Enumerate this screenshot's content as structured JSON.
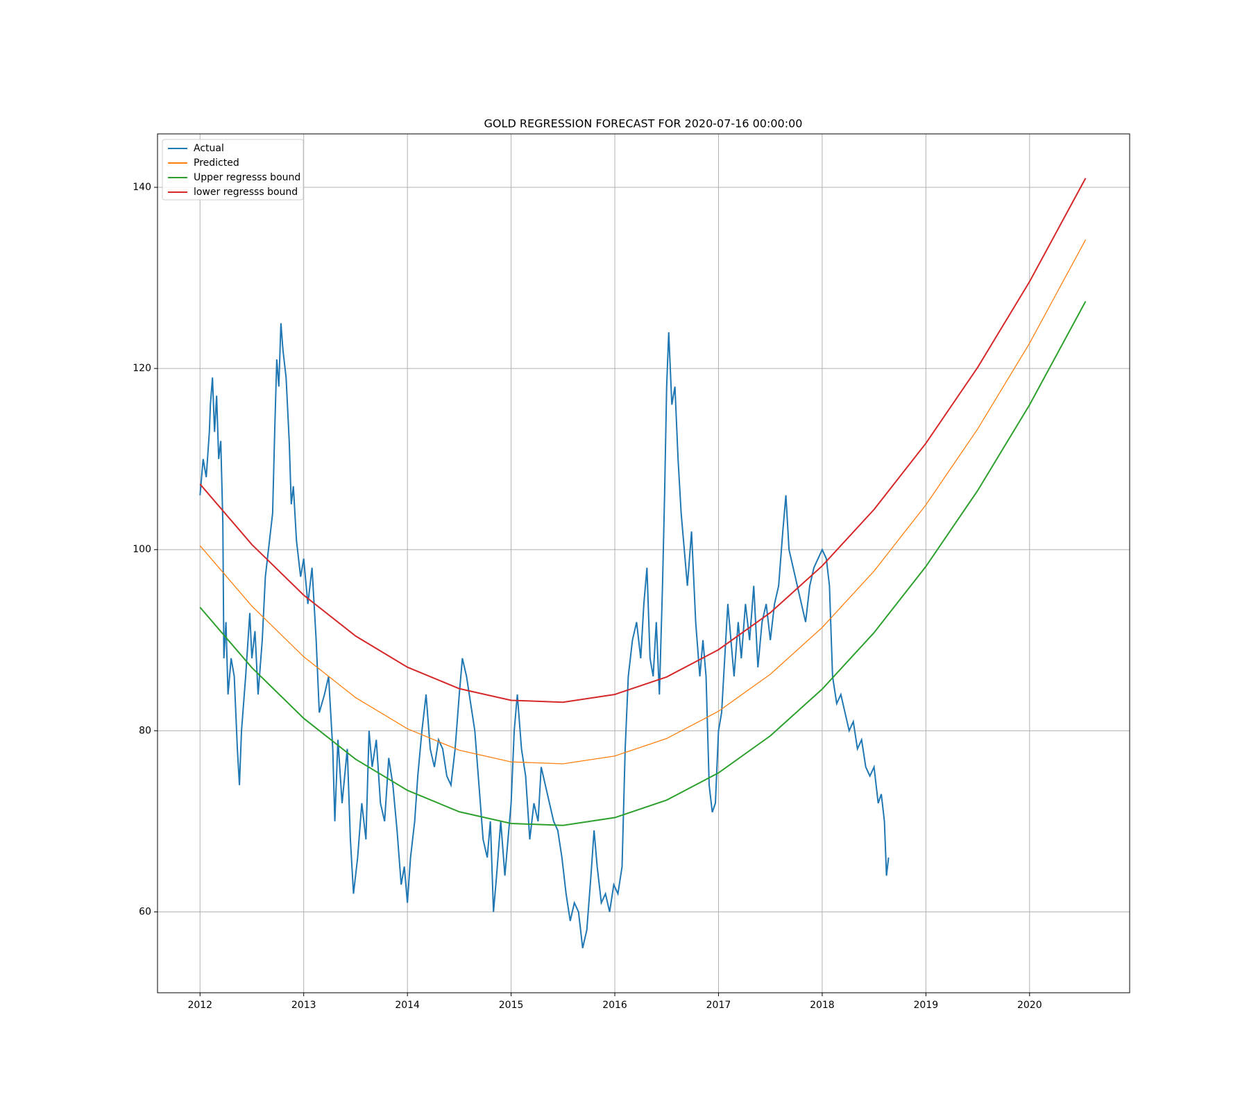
{
  "chart_data": {
    "type": "line",
    "title": "GOLD REGRESSION FORECAST FOR 2020-07-16 00:00:00",
    "xlim": [
      2011.59,
      2020.965
    ],
    "xticks": [
      2012,
      2013,
      2014,
      2015,
      2016,
      2017,
      2018,
      2019,
      2020
    ],
    "ylim": [
      51.07,
      145.9
    ],
    "yticks": [
      60,
      80,
      100,
      120,
      140
    ],
    "grid": true,
    "legend": "upper-left",
    "series": [
      {
        "name": "Actual",
        "color": "#1f77b4",
        "x": [
          2012.0,
          2012.03,
          2012.06,
          2012.09,
          2012.1,
          2012.12,
          2012.14,
          2012.16,
          2012.18,
          2012.2,
          2012.22,
          2012.23,
          2012.25,
          2012.27,
          2012.3,
          2012.33,
          2012.36,
          2012.38,
          2012.4,
          2012.44,
          2012.48,
          2012.5,
          2012.53,
          2012.56,
          2012.6,
          2012.63,
          2012.66,
          2012.7,
          2012.72,
          2012.74,
          2012.76,
          2012.78,
          2012.8,
          2012.83,
          2012.86,
          2012.88,
          2012.9,
          2012.93,
          2012.97,
          2013.0,
          2013.04,
          2013.08,
          2013.12,
          2013.15,
          2013.2,
          2013.24,
          2013.28,
          2013.3,
          2013.33,
          2013.37,
          2013.42,
          2013.45,
          2013.48,
          2013.52,
          2013.56,
          2013.6,
          2013.63,
          2013.66,
          2013.7,
          2013.74,
          2013.78,
          2013.82,
          2013.86,
          2013.9,
          2013.94,
          2013.97,
          2014.0,
          2014.03,
          2014.07,
          2014.1,
          2014.14,
          2014.18,
          2014.22,
          2014.26,
          2014.3,
          2014.34,
          2014.38,
          2014.42,
          2014.46,
          2014.5,
          2014.53,
          2014.57,
          2014.61,
          2014.65,
          2014.69,
          2014.73,
          2014.77,
          2014.8,
          2014.83,
          2014.86,
          2014.9,
          2014.94,
          2014.97,
          2015.0,
          2015.03,
          2015.06,
          2015.1,
          2015.14,
          2015.18,
          2015.22,
          2015.26,
          2015.29,
          2015.33,
          2015.37,
          2015.41,
          2015.45,
          2015.49,
          2015.53,
          2015.57,
          2015.61,
          2015.65,
          2015.69,
          2015.73,
          2015.77,
          2015.8,
          2015.83,
          2015.87,
          2015.91,
          2015.95,
          2015.99,
          2016.03,
          2016.07,
          2016.1,
          2016.13,
          2016.17,
          2016.21,
          2016.25,
          2016.28,
          2016.31,
          2016.34,
          2016.37,
          2016.4,
          2016.43,
          2016.46,
          2016.48,
          2016.5,
          2016.52,
          2016.55,
          2016.58,
          2016.61,
          2016.64,
          2016.67,
          2016.7,
          2016.74,
          2016.78,
          2016.82,
          2016.85,
          2016.88,
          2016.91,
          2016.94,
          2016.97,
          2017.0,
          2017.03,
          2017.06,
          2017.09,
          2017.12,
          2017.15,
          2017.19,
          2017.22,
          2017.26,
          2017.3,
          2017.34,
          2017.38,
          2017.42,
          2017.46,
          2017.5,
          2017.54,
          2017.58,
          2017.62,
          2017.65,
          2017.68,
          2017.72,
          2017.76,
          2017.8,
          2017.84,
          2017.88,
          2017.92,
          2017.96,
          2018.0,
          2018.04,
          2018.07,
          2018.1,
          2018.14,
          2018.18,
          2018.22,
          2018.26,
          2018.3,
          2018.34,
          2018.38,
          2018.42,
          2018.46,
          2018.5,
          2018.54,
          2018.57,
          2018.6,
          2018.62,
          2018.64
        ],
        "values": [
          106,
          110,
          108,
          113,
          116,
          119,
          113,
          117,
          110,
          112,
          103,
          88,
          92,
          84,
          88,
          86,
          78,
          74,
          80,
          86,
          93,
          88,
          91,
          84,
          90,
          97,
          100,
          104,
          113,
          121,
          118,
          125,
          122,
          119,
          112,
          105,
          107,
          101,
          97,
          99,
          94,
          98,
          90,
          82,
          84,
          86,
          78,
          70,
          79,
          72,
          78,
          68,
          62,
          66,
          72,
          68,
          80,
          76,
          79,
          72,
          70,
          77,
          74,
          69,
          63,
          65,
          61,
          66,
          70,
          75,
          80,
          84,
          78,
          76,
          79,
          78,
          75,
          74,
          78,
          84,
          88,
          86,
          83,
          80,
          74,
          68,
          66,
          70,
          60,
          64,
          70,
          64,
          68,
          72,
          80,
          84,
          78,
          75,
          68,
          72,
          70,
          76,
          74,
          72,
          70,
          69,
          66,
          62,
          59,
          61,
          60,
          56,
          58,
          64,
          69,
          65,
          61,
          62,
          60,
          63,
          62,
          65,
          78,
          86,
          90,
          92,
          88,
          94,
          98,
          88,
          86,
          92,
          84,
          96,
          106,
          118,
          124,
          116,
          118,
          110,
          104,
          100,
          96,
          102,
          92,
          86,
          90,
          86,
          74,
          71,
          72,
          80,
          82,
          88,
          94,
          90,
          86,
          92,
          88,
          94,
          90,
          96,
          87,
          92,
          94,
          90,
          94,
          96,
          102,
          106,
          100,
          98,
          96,
          94,
          92,
          96,
          98,
          99,
          100,
          99,
          96,
          86,
          83,
          84,
          82,
          80,
          81,
          78,
          79,
          76,
          75,
          76,
          72,
          73,
          70,
          64,
          66
        ]
      },
      {
        "name": "Predicted",
        "color": "#ff7f0e",
        "x": [
          2012,
          2012.5,
          2013,
          2013.5,
          2014,
          2014.5,
          2015,
          2015.5,
          2016,
          2016.5,
          2017,
          2017.5,
          2018,
          2018.5,
          2019,
          2019.5,
          2020,
          2020.54
        ],
        "values": [
          100.43,
          93.76,
          88.17,
          83.66,
          80.22,
          77.85,
          76.56,
          76.35,
          77.21,
          79.14,
          82.15,
          86.24,
          91.4,
          97.63,
          104.94,
          113.33,
          122.79,
          134.21
        ]
      },
      {
        "name": "Upper regresss bound",
        "color": "#2ca02c",
        "x": [
          2012,
          2012.5,
          2013,
          2013.5,
          2014,
          2014.5,
          2015,
          2015.5,
          2016,
          2016.5,
          2017,
          2017.5,
          2018,
          2018.5,
          2019,
          2019.5,
          2020,
          2020.54
        ],
        "values": [
          93.63,
          86.96,
          81.37,
          76.86,
          73.42,
          71.05,
          69.76,
          69.55,
          70.41,
          72.34,
          75.35,
          79.44,
          84.6,
          90.83,
          98.14,
          106.53,
          115.99,
          127.41
        ]
      },
      {
        "name": "lower regresss bound",
        "color": "#d62728",
        "x": [
          2012,
          2012.5,
          2013,
          2013.5,
          2014,
          2014.5,
          2015,
          2015.5,
          2016,
          2016.5,
          2017,
          2017.5,
          2018,
          2018.5,
          2019,
          2019.5,
          2020,
          2020.54
        ],
        "values": [
          107.23,
          100.56,
          94.97,
          90.46,
          87.02,
          84.65,
          83.36,
          83.15,
          84.01,
          85.94,
          88.95,
          93.04,
          98.2,
          104.43,
          111.74,
          120.13,
          129.59,
          141.01
        ]
      }
    ]
  }
}
